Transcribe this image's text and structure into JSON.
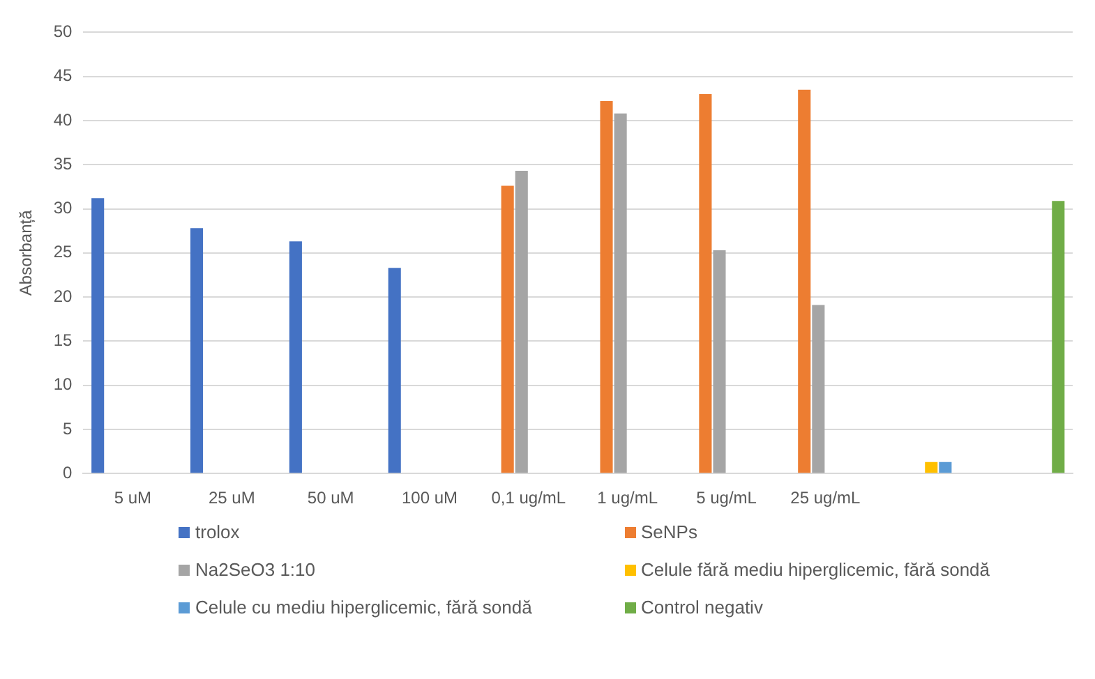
{
  "chart_data": {
    "type": "bar",
    "ylabel": "Absorbanță",
    "categories": [
      "5 uM",
      "25 uM",
      "50 uM",
      "100 uM",
      "0,1 ug/mL",
      "1 ug/mL",
      "5 ug/mL",
      "25 ug/mL",
      null,
      null
    ],
    "series": [
      {
        "name": "trolox",
        "color": "#4472c4",
        "values": [
          31.2,
          27.8,
          26.3,
          23.3,
          null,
          null,
          null,
          null,
          null,
          null
        ]
      },
      {
        "name": "SeNPs",
        "color": "#ed7d31",
        "values": [
          null,
          null,
          null,
          null,
          32.6,
          42.2,
          43.0,
          43.5,
          null,
          null
        ]
      },
      {
        "name": "Na2SeO3 1:10",
        "color": "#a5a5a5",
        "values": [
          null,
          null,
          null,
          null,
          34.3,
          40.8,
          25.3,
          19.1,
          null,
          null
        ]
      },
      {
        "name": "Celule fără mediu hiperglicemic, fără sondă",
        "color": "#ffc000",
        "values": [
          null,
          null,
          null,
          null,
          null,
          null,
          null,
          null,
          1.3,
          null
        ]
      },
      {
        "name": "Celule cu mediu hiperglicemic, fără sondă",
        "color": "#5b9bd5",
        "values": [
          null,
          null,
          null,
          null,
          null,
          null,
          null,
          null,
          1.3,
          null
        ]
      },
      {
        "name": "Control negativ",
        "color": "#70ad47",
        "values": [
          null,
          null,
          null,
          null,
          null,
          null,
          null,
          null,
          null,
          30.9
        ]
      }
    ],
    "ylim": [
      0,
      50
    ],
    "yticks": [
      0,
      5,
      10,
      15,
      20,
      25,
      30,
      35,
      40,
      45,
      50
    ],
    "grid": "y",
    "legend": "bottom"
  }
}
